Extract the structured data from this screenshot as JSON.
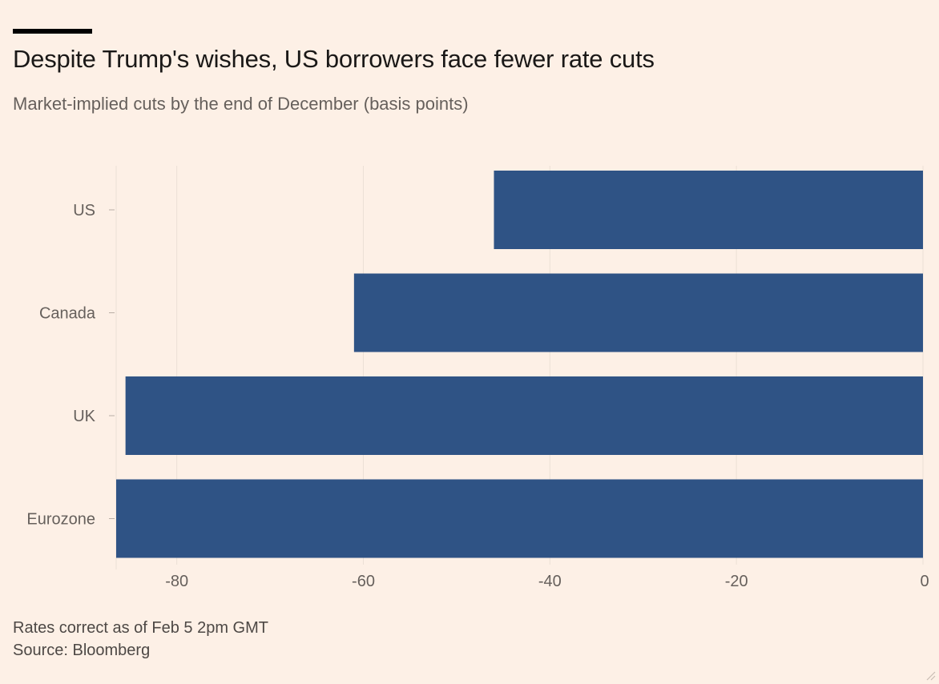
{
  "header": {
    "title": "Despite Trump's wishes, US borrowers face fewer rate cuts",
    "subtitle": "Market-implied cuts by the end of December (basis points)"
  },
  "footer": {
    "note": "Rates correct as of Feb 5 2pm GMT",
    "source": "Source: Bloomberg"
  },
  "colors": {
    "background": "#fdf0e6",
    "bar": "#2f5385",
    "grid": "#ece0d6",
    "tick_text": "#66605c"
  },
  "chart_data": {
    "type": "bar",
    "orientation": "horizontal",
    "title": "Despite Trump's wishes, US borrowers face fewer rate cuts",
    "subtitle": "Market-implied cuts by the end of December (basis points)",
    "categories": [
      "US",
      "Canada",
      "UK",
      "Eurozone"
    ],
    "values": [
      -46,
      -61,
      -85.5,
      -86.5
    ],
    "xlim": [
      -86.5,
      0
    ],
    "xticks": [
      -80,
      -60,
      -40,
      -20,
      0
    ],
    "xlabel": "",
    "ylabel": "",
    "grid": true,
    "legend": "none"
  }
}
